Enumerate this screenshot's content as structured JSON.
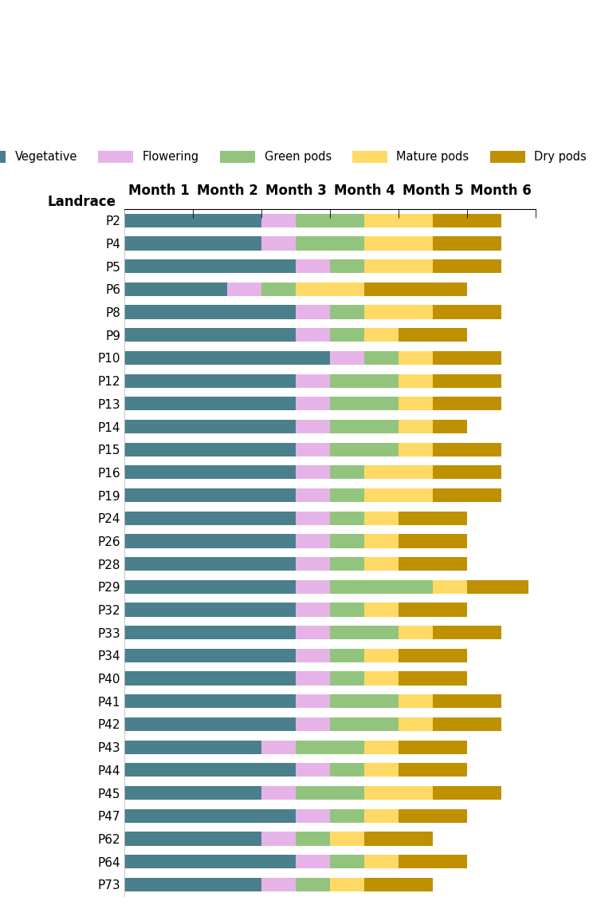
{
  "chart_data": {
    "type": "bar",
    "orientation": "horizontal",
    "stacked": true,
    "y_label": "Landrace",
    "categories": [
      "P2",
      "P4",
      "P5",
      "P6",
      "P8",
      "P9",
      "P10",
      "P12",
      "P13",
      "P14",
      "P15",
      "P16",
      "P19",
      "P24",
      "P26",
      "P28",
      "P29",
      "P32",
      "P33",
      "P34",
      "P40",
      "P41",
      "P42",
      "P43",
      "P44",
      "P45",
      "P47",
      "P62",
      "P64",
      "P73"
    ],
    "xlim": [
      0,
      6
    ],
    "xticks": [
      {
        "value": 0.5,
        "label": "Month 1"
      },
      {
        "value": 1.5,
        "label": "Month 2"
      },
      {
        "value": 2.5,
        "label": "Month 3"
      },
      {
        "value": 3.5,
        "label": "Month 4"
      },
      {
        "value": 4.5,
        "label": "Month 5"
      },
      {
        "value": 5.5,
        "label": "Month 6"
      }
    ],
    "legend": "upper center",
    "grid": false,
    "series": [
      {
        "name": "Vegetative",
        "color": "#4a7f8c",
        "values": [
          2,
          2,
          2.5,
          1.5,
          2.5,
          2.5,
          3,
          2.5,
          2.5,
          2.5,
          2.5,
          2.5,
          2.5,
          2.5,
          2.5,
          2.5,
          2.5,
          2.5,
          2.5,
          2.5,
          2.5,
          2.5,
          2.5,
          2,
          2.5,
          2,
          2.5,
          2,
          2.5,
          2
        ]
      },
      {
        "name": "Flowering",
        "color": "#e6b3e8",
        "values": [
          0.5,
          0.5,
          0.5,
          0.5,
          0.5,
          0.5,
          0.5,
          0.5,
          0.5,
          0.5,
          0.5,
          0.5,
          0.5,
          0.5,
          0.5,
          0.5,
          0.5,
          0.5,
          0.5,
          0.5,
          0.5,
          0.5,
          0.5,
          0.5,
          0.5,
          0.5,
          0.5,
          0.5,
          0.5,
          0.5
        ]
      },
      {
        "name": "Green pods",
        "color": "#93c47d",
        "values": [
          1,
          1,
          0.5,
          0.5,
          0.5,
          0.5,
          0.5,
          1,
          1,
          1,
          1,
          0.5,
          0.5,
          0.5,
          0.5,
          0.5,
          1.5,
          0.5,
          1,
          0.5,
          0.5,
          1,
          1,
          1,
          0.5,
          1,
          0.5,
          0.5,
          0.5,
          0.5
        ]
      },
      {
        "name": "Mature pods",
        "color": "#ffd966",
        "values": [
          1,
          1,
          1,
          1,
          1,
          0.5,
          0.5,
          0.5,
          0.5,
          0.5,
          0.5,
          1,
          1,
          0.5,
          0.5,
          0.5,
          0.5,
          0.5,
          0.5,
          0.5,
          0.5,
          0.5,
          0.5,
          0.5,
          0.5,
          1,
          0.5,
          0.5,
          0.5,
          0.5
        ]
      },
      {
        "name": "Dry pods",
        "color": "#bf9000",
        "values": [
          1,
          1,
          1,
          1.5,
          1,
          1,
          1,
          1,
          1,
          0.5,
          1,
          1,
          1,
          1,
          1,
          1,
          0.9,
          1,
          1,
          1,
          1,
          1,
          1,
          1,
          1,
          1,
          1,
          1,
          1,
          1
        ]
      }
    ]
  }
}
